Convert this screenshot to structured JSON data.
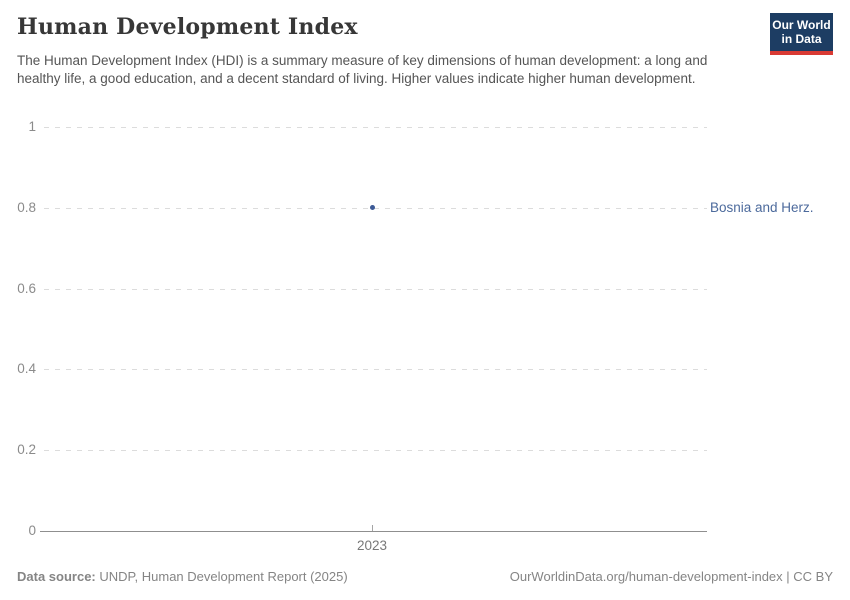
{
  "header": {
    "title": "Human Development Index",
    "subtitle": "The Human Development Index (HDI) is a summary measure of key dimensions of human development: a long and healthy life, a good education, and a decent standard of living. Higher values indicate higher human development.",
    "logo_line1": "Our World",
    "logo_line2": "in Data"
  },
  "chart_data": {
    "type": "scatter",
    "title": "Human Development Index",
    "entity": "Bosnia and Herz.",
    "x": [
      2023
    ],
    "values": [
      0.8
    ],
    "x_tick_labels": [
      "2023"
    ],
    "y_tick_labels": [
      "1",
      "0.8",
      "0.6",
      "0.4",
      "0.2",
      "0"
    ],
    "ylim": [
      0,
      1
    ],
    "xlabel": "",
    "ylabel": "",
    "grid": "horizontal-dashed",
    "point_color": "#3c5a96",
    "entity_label_color": "#4c6a9c",
    "legend_position": "right-of-point"
  },
  "footer": {
    "source_label": "Data source:",
    "source_value": " UNDP, Human Development Report (2025)",
    "credit": "OurWorldinData.org/human-development-index | CC BY"
  }
}
